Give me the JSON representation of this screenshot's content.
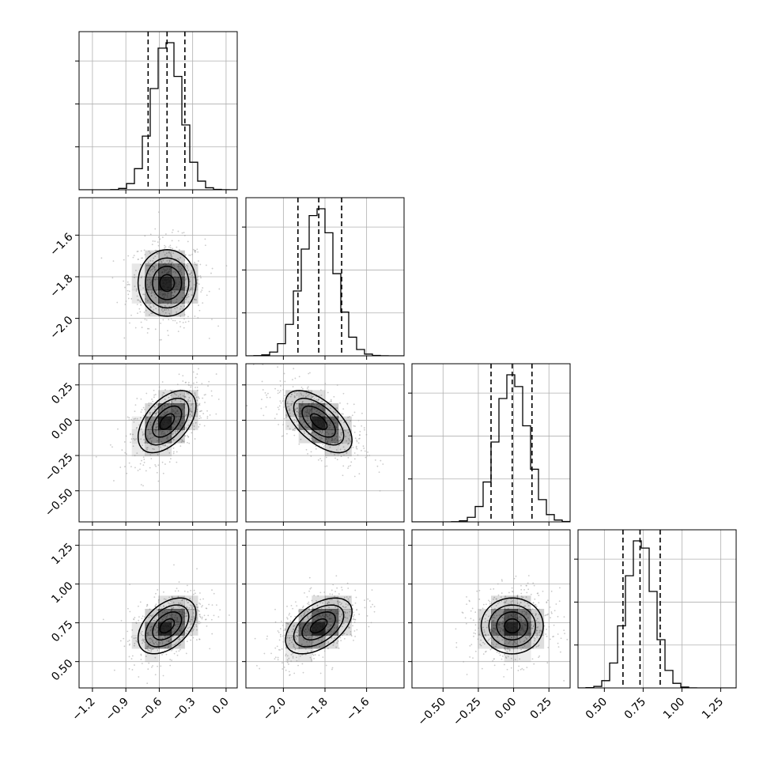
{
  "chart_data": {
    "type": "corner",
    "parameters": 4,
    "line_color": "#000000",
    "scatter_color": "#9e9e9e",
    "fill_color": "#000000",
    "grid": true,
    "axes": [
      {
        "range": [
          -1.32,
          0.1
        ],
        "ticks": [
          -1.2,
          -0.9,
          -0.6,
          -0.3,
          0.0
        ],
        "tick_labels": [
          "−1.2",
          "−0.9",
          "−0.6",
          "−0.3",
          "0.0"
        ],
        "mean": -0.53,
        "sd": 0.13,
        "quantiles": [
          -0.7,
          -0.53,
          -0.37
        ]
      },
      {
        "range": [
          -2.18,
          -1.42
        ],
        "ticks": [
          -2.0,
          -1.8,
          -1.6
        ],
        "tick_labels": [
          "−2.0",
          "−1.8",
          "−1.6"
        ],
        "mean": -1.83,
        "sd": 0.08,
        "quantiles": [
          -1.93,
          -1.83,
          -1.72
        ]
      },
      {
        "range": [
          -0.72,
          0.4
        ],
        "ticks": [
          -0.5,
          -0.25,
          0.0,
          0.25
        ],
        "tick_labels": [
          "−0.50",
          "−0.25",
          "0.00",
          "0.25"
        ],
        "mean": -0.01,
        "sd": 0.11,
        "quantiles": [
          -0.16,
          -0.01,
          0.13
        ]
      },
      {
        "range": [
          0.33,
          1.35
        ],
        "ticks": [
          0.5,
          0.75,
          1.0,
          1.25
        ],
        "tick_labels": [
          "0.50",
          "0.75",
          "1.00",
          "1.25"
        ],
        "mean": 0.73,
        "sd": 0.09,
        "quantiles": [
          0.62,
          0.73,
          0.86
        ]
      }
    ],
    "correlations": {
      "1-0": 0.0,
      "2-0": 0.5,
      "2-1": -0.6,
      "3-0": 0.45,
      "3-1": 0.5,
      "3-2": 0.0
    },
    "histogram_bins": 20,
    "contour_sigma_levels": [
      0.5,
      1.0,
      1.5,
      2.0
    ],
    "scatter_samples": 600
  }
}
